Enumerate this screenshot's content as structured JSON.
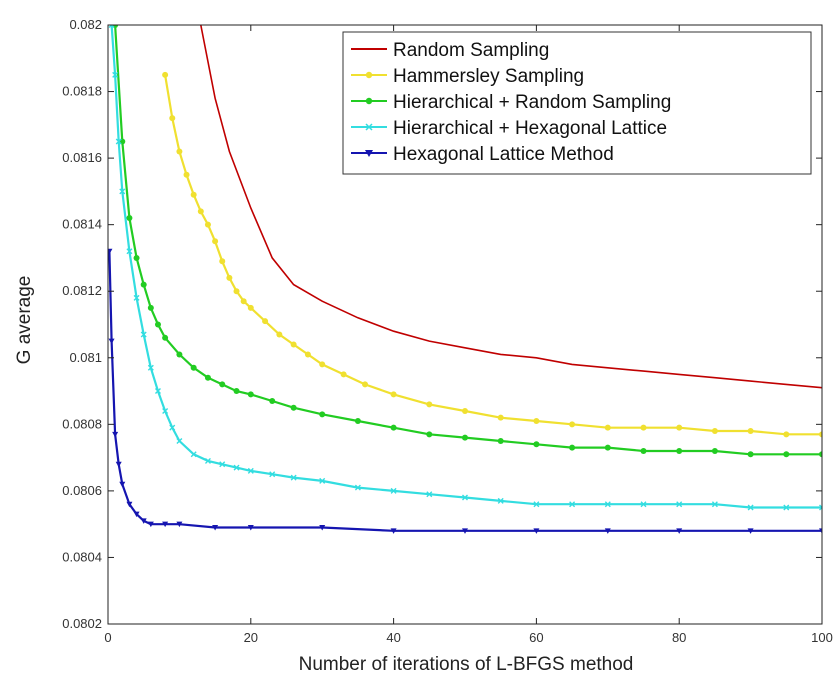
{
  "chart_data": {
    "type": "line",
    "title": "",
    "xlabel": "Number of iterations of L-BFGS method",
    "ylabel": "G average",
    "xlim": [
      0,
      100
    ],
    "ylim": [
      0.0802,
      0.082
    ],
    "x_ticks": [
      0,
      20,
      40,
      60,
      80,
      100
    ],
    "x_tick_labels": [
      "0",
      "20",
      "40",
      "60",
      "80",
      "100"
    ],
    "y_ticks": [
      0.0802,
      0.0804,
      0.0806,
      0.0808,
      0.081,
      0.0812,
      0.0814,
      0.0816,
      0.0818,
      0.082
    ],
    "y_tick_labels": [
      "0.0802",
      "0.0804",
      "0.0806",
      "0.0808",
      "0.081",
      "0.0812",
      "0.0814",
      "0.0816",
      "0.0818",
      "0.082"
    ],
    "grid": false,
    "legend_position": "top-right",
    "series": [
      {
        "name": "Random Sampling",
        "color": "#c00000",
        "marker": "none",
        "x": [
          13,
          15,
          17,
          20,
          23,
          26,
          30,
          35,
          40,
          45,
          50,
          55,
          60,
          65,
          70,
          75,
          80,
          85,
          90,
          95,
          100
        ],
        "y": [
          0.082,
          0.08178,
          0.08162,
          0.08145,
          0.0813,
          0.08122,
          0.08117,
          0.08112,
          0.08108,
          0.08105,
          0.08103,
          0.08101,
          0.081,
          0.08098,
          0.08097,
          0.08096,
          0.08095,
          0.08094,
          0.08093,
          0.08092,
          0.08091
        ]
      },
      {
        "name": "Hammersley Sampling",
        "color": "#f0e030",
        "marker": "circle",
        "x": [
          8,
          9,
          10,
          11,
          12,
          13,
          14,
          15,
          16,
          17,
          18,
          19,
          20,
          22,
          24,
          26,
          28,
          30,
          33,
          36,
          40,
          45,
          50,
          55,
          60,
          65,
          70,
          75,
          80,
          85,
          90,
          95,
          100
        ],
        "y": [
          0.08185,
          0.08172,
          0.08162,
          0.08155,
          0.08149,
          0.08144,
          0.0814,
          0.08135,
          0.08129,
          0.08124,
          0.0812,
          0.08117,
          0.08115,
          0.08111,
          0.08107,
          0.08104,
          0.08101,
          0.08098,
          0.08095,
          0.08092,
          0.08089,
          0.08086,
          0.08084,
          0.08082,
          0.08081,
          0.0808,
          0.08079,
          0.08079,
          0.08079,
          0.08078,
          0.08078,
          0.08077,
          0.08077
        ]
      },
      {
        "name": "Hierarchical + Random Sampling",
        "color": "#22cc22",
        "marker": "circle",
        "x": [
          1,
          2,
          3,
          4,
          5,
          6,
          7,
          8,
          10,
          12,
          14,
          16,
          18,
          20,
          23,
          26,
          30,
          35,
          40,
          45,
          50,
          55,
          60,
          65,
          70,
          75,
          80,
          85,
          90,
          95,
          100
        ],
        "y": [
          0.082,
          0.08165,
          0.08142,
          0.0813,
          0.08122,
          0.08115,
          0.0811,
          0.08106,
          0.08101,
          0.08097,
          0.08094,
          0.08092,
          0.0809,
          0.08089,
          0.08087,
          0.08085,
          0.08083,
          0.08081,
          0.08079,
          0.08077,
          0.08076,
          0.08075,
          0.08074,
          0.08073,
          0.08073,
          0.08072,
          0.08072,
          0.08072,
          0.08071,
          0.08071,
          0.08071
        ]
      },
      {
        "name": "Hierarchical + Hexagonal Lattice",
        "color": "#33dde0",
        "marker": "x",
        "x": [
          0.5,
          1,
          1.5,
          2,
          3,
          4,
          5,
          6,
          7,
          8,
          9,
          10,
          12,
          14,
          16,
          18,
          20,
          23,
          26,
          30,
          35,
          40,
          45,
          50,
          55,
          60,
          65,
          70,
          75,
          80,
          85,
          90,
          95,
          100
        ],
        "y": [
          0.082,
          0.08185,
          0.08165,
          0.0815,
          0.08132,
          0.08118,
          0.08107,
          0.08097,
          0.0809,
          0.08084,
          0.08079,
          0.08075,
          0.08071,
          0.08069,
          0.08068,
          0.08067,
          0.08066,
          0.08065,
          0.08064,
          0.08063,
          0.08061,
          0.0806,
          0.08059,
          0.08058,
          0.08057,
          0.08056,
          0.08056,
          0.08056,
          0.08056,
          0.08056,
          0.08056,
          0.08055,
          0.08055,
          0.08055
        ]
      },
      {
        "name": "Hexagonal Lattice Method",
        "color": "#1515b0",
        "marker": "triangle",
        "x": [
          0.2,
          0.5,
          1,
          1.5,
          2,
          3,
          4,
          5,
          6,
          8,
          10,
          15,
          20,
          30,
          40,
          50,
          60,
          70,
          80,
          90,
          100
        ],
        "y": [
          0.08132,
          0.08105,
          0.08077,
          0.08068,
          0.08062,
          0.08056,
          0.08053,
          0.08051,
          0.0805,
          0.0805,
          0.0805,
          0.08049,
          0.08049,
          0.08049,
          0.08048,
          0.08048,
          0.08048,
          0.08048,
          0.08048,
          0.08048,
          0.08048
        ]
      }
    ]
  }
}
